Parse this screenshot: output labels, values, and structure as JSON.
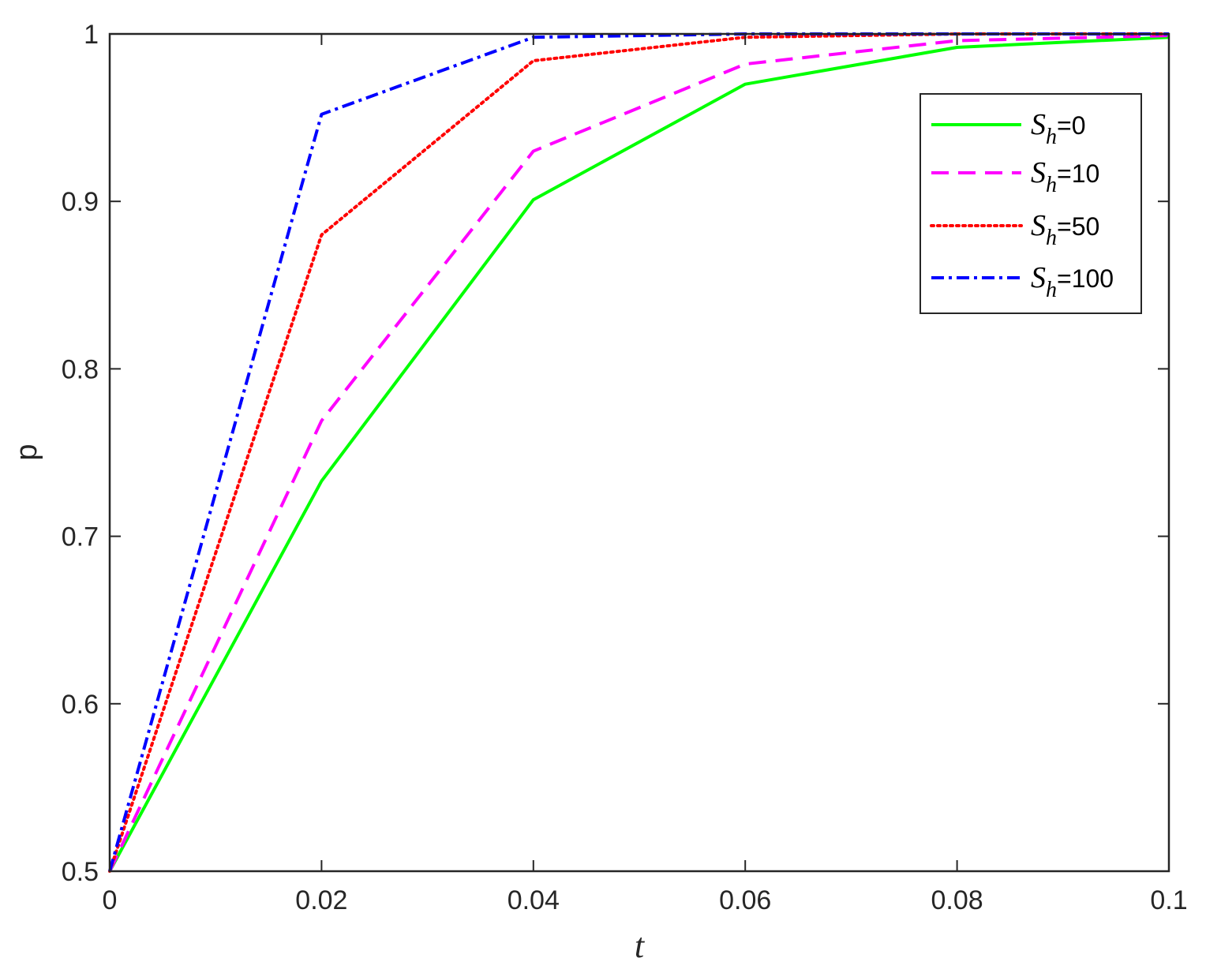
{
  "chart_data": {
    "type": "line",
    "title": "",
    "xlabel": "t",
    "ylabel": "p",
    "xlim": [
      0,
      0.1
    ],
    "ylim": [
      0.5,
      1
    ],
    "x": [
      0,
      0.02,
      0.04,
      0.06,
      0.08,
      0.1
    ],
    "x_ticks": [
      "0",
      "0.02",
      "0.04",
      "0.06",
      "0.08",
      "0.1"
    ],
    "y_ticks": [
      "0.5",
      "0.6",
      "0.7",
      "0.8",
      "0.9",
      "1"
    ],
    "x_tick_values": [
      0,
      0.02,
      0.04,
      0.06,
      0.08,
      0.1
    ],
    "y_tick_values": [
      0.5,
      0.6,
      0.7,
      0.8,
      0.9,
      1
    ],
    "grid": false,
    "legend_position": "top-right",
    "series": [
      {
        "name": "S_h=0",
        "legend_symbol": "S",
        "legend_subscript": "h",
        "legend_suffix": "=0",
        "values": [
          0.5,
          0.733,
          0.901,
          0.97,
          0.992,
          0.998
        ],
        "color": "#00ff00",
        "style": "solid"
      },
      {
        "name": "S_h=10",
        "legend_symbol": "S",
        "legend_subscript": "h",
        "legend_suffix": "=10",
        "values": [
          0.5,
          0.769,
          0.93,
          0.982,
          0.996,
          0.999
        ],
        "color": "#ff00ff",
        "style": "dashed"
      },
      {
        "name": "S_h=50",
        "legend_symbol": "S",
        "legend_subscript": "h",
        "legend_suffix": "=50",
        "values": [
          0.5,
          0.88,
          0.984,
          0.998,
          1.0,
          1.0
        ],
        "color": "#ff0000",
        "style": "dotted"
      },
      {
        "name": "S_h=100",
        "legend_symbol": "S",
        "legend_subscript": "h",
        "legend_suffix": "=100",
        "values": [
          0.5,
          0.952,
          0.998,
          1.0,
          1.0,
          1.0
        ],
        "color": "#0000ff",
        "style": "dashdot"
      }
    ]
  }
}
